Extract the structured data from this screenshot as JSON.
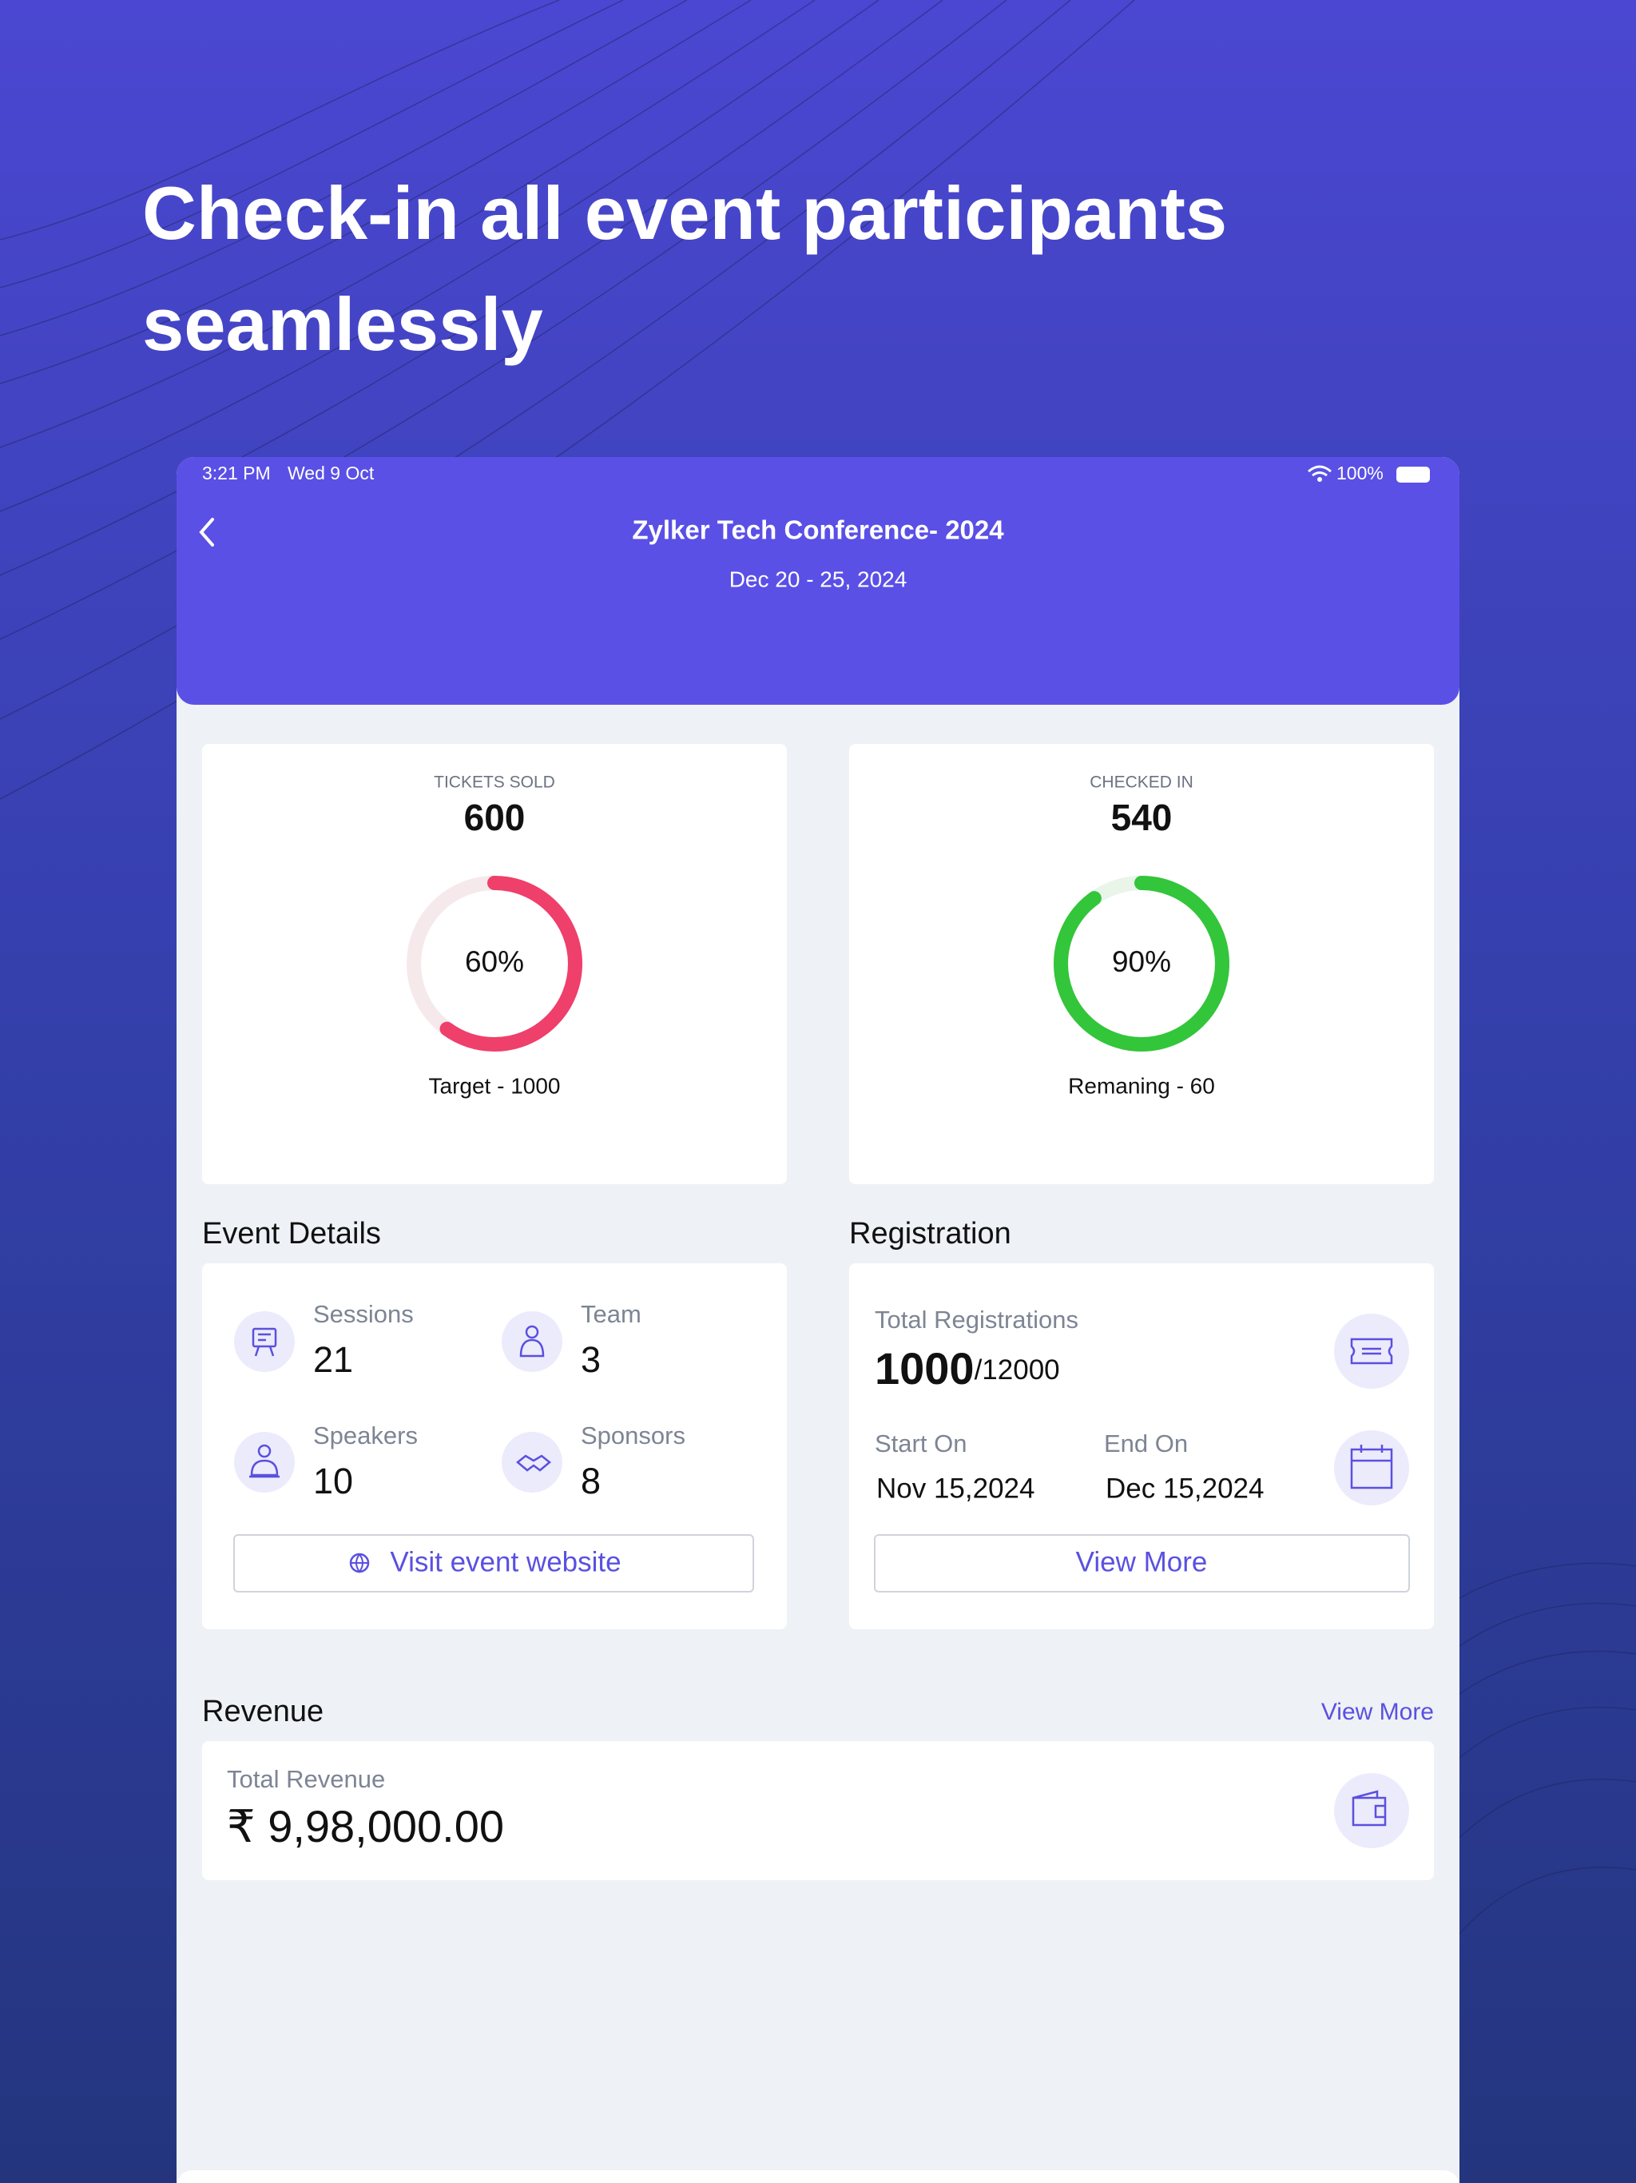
{
  "headline": [
    "Check-in all event participants",
    "seamlessly"
  ],
  "status_bar": {
    "time": "3:21 PM",
    "date": "Wed 9 Oct",
    "battery": "100%"
  },
  "header": {
    "title": "Zylker Tech Conference- 2024",
    "dates": "Dec 20 - 25, 2024"
  },
  "stats": [
    {
      "label": "TICKETS SOLD",
      "value": "600",
      "progress": {
        "value": 60,
        "label": "60%"
      },
      "footnote": "Target - 1000",
      "color": "#ef3f6b",
      "track": "#f5e9ec"
    },
    {
      "label": "CHECKED IN",
      "value": "540",
      "progress": {
        "value": 90,
        "label": "90%"
      },
      "footnote": "Remaning - 60",
      "color": "#33c53a",
      "track": "#e9f5e9"
    }
  ],
  "event_details": {
    "title": "Event Details",
    "items": [
      {
        "label": "Sessions",
        "value": "21"
      },
      {
        "label": "Team",
        "value": "3"
      },
      {
        "label": "Speakers",
        "value": "10"
      },
      {
        "label": "Sponsors",
        "value": "8"
      }
    ],
    "button": "Visit event website"
  },
  "registration": {
    "title": "Registration",
    "total_label": "Total Registrations",
    "total": "1000",
    "total_max": "/12000",
    "start_label": "Start On",
    "start": "Nov 15,2024",
    "end_label": "End On",
    "end": "Dec 15,2024",
    "button": "View More"
  },
  "revenue": {
    "title": "Revenue",
    "link": "View More",
    "total_label": "Total Revenue",
    "total": "₹ 9,98,000.00"
  }
}
